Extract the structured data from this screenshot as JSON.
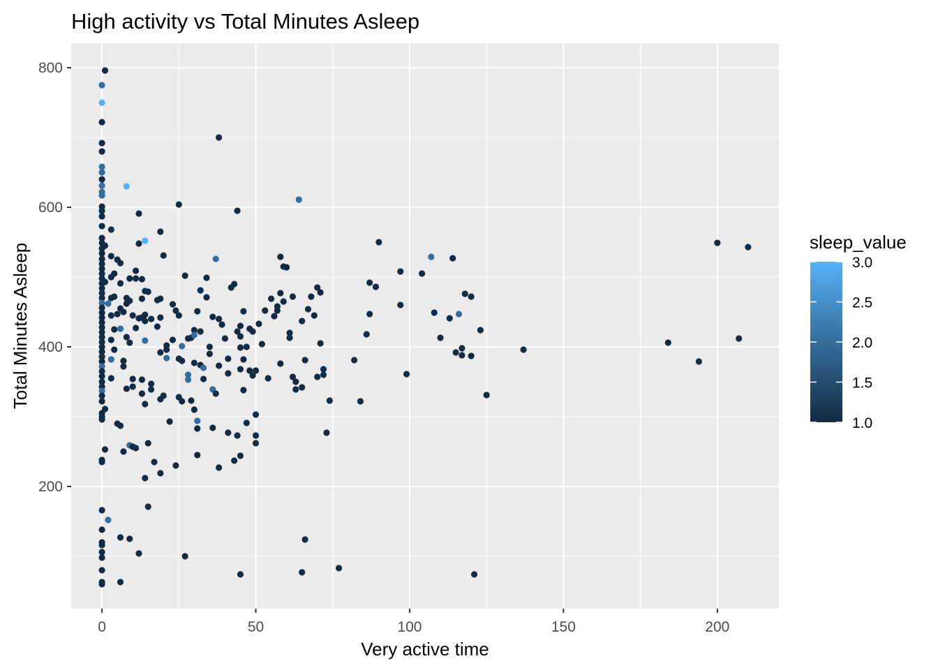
{
  "chart_data": {
    "type": "scatter",
    "title": "High activity vs Total Minutes Asleep",
    "xlabel": "Very active time",
    "ylabel": "Total Minutes Asleep",
    "xlim": [
      -10,
      220
    ],
    "ylim": [
      25,
      835
    ],
    "x_ticks": [
      0,
      50,
      100,
      150,
      200
    ],
    "y_ticks": [
      200,
      400,
      600,
      800
    ],
    "x_tick_labels": [
      "0",
      "50",
      "100",
      "150",
      "200"
    ],
    "y_tick_labels": [
      "200",
      "400",
      "600",
      "800"
    ],
    "grid": true,
    "panel_background": "#EBEBEB",
    "grid_color": "#FFFFFF",
    "color_scale": {
      "title": "sleep_value",
      "low": 1.0,
      "high": 3.0,
      "low_color": "#132B43",
      "high_color": "#56B1F7",
      "breaks": [
        1.0,
        1.5,
        2.0,
        2.5,
        3.0
      ],
      "break_labels": [
        "1.0",
        "1.5",
        "2.0",
        "2.5",
        "3.0"
      ],
      "legend_position": "right"
    },
    "points": [
      [
        0,
        775,
        2
      ],
      [
        0,
        750,
        3
      ],
      [
        0,
        722,
        1
      ],
      [
        0,
        692,
        1
      ],
      [
        0,
        680,
        1
      ],
      [
        0,
        658,
        2
      ],
      [
        0,
        650,
        2
      ],
      [
        0,
        640,
        1
      ],
      [
        0,
        631,
        2
      ],
      [
        0,
        622,
        2
      ],
      [
        0,
        617,
        2
      ],
      [
        0,
        601,
        1
      ],
      [
        0,
        595,
        1
      ],
      [
        0,
        587,
        1
      ],
      [
        0,
        573,
        1
      ],
      [
        0,
        556,
        1
      ],
      [
        0,
        549,
        1
      ],
      [
        0,
        541,
        1
      ],
      [
        0,
        534,
        1
      ],
      [
        0,
        526,
        1
      ],
      [
        0,
        519,
        1
      ],
      [
        0,
        512,
        1
      ],
      [
        0,
        505,
        1
      ],
      [
        0,
        498,
        1
      ],
      [
        0,
        491,
        1
      ],
      [
        0,
        484,
        1
      ],
      [
        0,
        477,
        1
      ],
      [
        0,
        470,
        1
      ],
      [
        0,
        463,
        2
      ],
      [
        0,
        456,
        1
      ],
      [
        0,
        449,
        1
      ],
      [
        0,
        442,
        1
      ],
      [
        0,
        435,
        1
      ],
      [
        0,
        428,
        1
      ],
      [
        0,
        421,
        1
      ],
      [
        0,
        414,
        1
      ],
      [
        0,
        407,
        1
      ],
      [
        0,
        400,
        1
      ],
      [
        0,
        393,
        1
      ],
      [
        0,
        386,
        1
      ],
      [
        0,
        379,
        1
      ],
      [
        0,
        372,
        2
      ],
      [
        0,
        365,
        1
      ],
      [
        0,
        358,
        1
      ],
      [
        0,
        350,
        1
      ],
      [
        0,
        343,
        1
      ],
      [
        0,
        337,
        2
      ],
      [
        0,
        330,
        1
      ],
      [
        0,
        322,
        1
      ],
      [
        0,
        305,
        1
      ],
      [
        0,
        300,
        1
      ],
      [
        0,
        296,
        1
      ],
      [
        0,
        238,
        1
      ],
      [
        0,
        235,
        1
      ],
      [
        0,
        166,
        1
      ],
      [
        0,
        138,
        1
      ],
      [
        0,
        120,
        1
      ],
      [
        0,
        116,
        1
      ],
      [
        0,
        106,
        1
      ],
      [
        0,
        98,
        1
      ],
      [
        0,
        80,
        1
      ],
      [
        0,
        63,
        1
      ],
      [
        0,
        60,
        1
      ],
      [
        1,
        796,
        1
      ],
      [
        1,
        311,
        1
      ],
      [
        1,
        253,
        1
      ],
      [
        1,
        545,
        1
      ],
      [
        1,
        493,
        1
      ],
      [
        2,
        152,
        2
      ],
      [
        2,
        462,
        2
      ],
      [
        3,
        568,
        1
      ],
      [
        3,
        530,
        1
      ],
      [
        3,
        500,
        1
      ],
      [
        3,
        470,
        1
      ],
      [
        3,
        445,
        1
      ],
      [
        3,
        410,
        1
      ],
      [
        3,
        382,
        2
      ],
      [
        3,
        355,
        1
      ],
      [
        4,
        505,
        1
      ],
      [
        4,
        472,
        1
      ],
      [
        4,
        425,
        1
      ],
      [
        4,
        396,
        1
      ],
      [
        5,
        525,
        1
      ],
      [
        5,
        447,
        1
      ],
      [
        5,
        290,
        1
      ],
      [
        6,
        520,
        1
      ],
      [
        6,
        491,
        1
      ],
      [
        6,
        455,
        1
      ],
      [
        6,
        426,
        2
      ],
      [
        6,
        287,
        1
      ],
      [
        6,
        127,
        1
      ],
      [
        6,
        63,
        1
      ],
      [
        7,
        450,
        1
      ],
      [
        7,
        380,
        1
      ],
      [
        7,
        372,
        1
      ],
      [
        7,
        250,
        1
      ],
      [
        8,
        630,
        3
      ],
      [
        8,
        470,
        1
      ],
      [
        8,
        462,
        1
      ],
      [
        8,
        414,
        1
      ],
      [
        8,
        340,
        1
      ],
      [
        9,
        498,
        1
      ],
      [
        9,
        466,
        1
      ],
      [
        9,
        406,
        1
      ],
      [
        9,
        259,
        2
      ],
      [
        9,
        125,
        1
      ],
      [
        10,
        445,
        1
      ],
      [
        10,
        354,
        1
      ],
      [
        10,
        343,
        1
      ],
      [
        10,
        257,
        1
      ],
      [
        11,
        509,
        1
      ],
      [
        11,
        498,
        1
      ],
      [
        11,
        427,
        1
      ],
      [
        11,
        255,
        1
      ],
      [
        12,
        591,
        1
      ],
      [
        12,
        548,
        1
      ],
      [
        12,
        441,
        1
      ],
      [
        12,
        104,
        1
      ],
      [
        13,
        497,
        1
      ],
      [
        13,
        469,
        1
      ],
      [
        13,
        442,
        1
      ],
      [
        13,
        353,
        1
      ],
      [
        13,
        333,
        1
      ],
      [
        14,
        552,
        3
      ],
      [
        14,
        480,
        1
      ],
      [
        14,
        446,
        1
      ],
      [
        14,
        437,
        1
      ],
      [
        14,
        409,
        2
      ],
      [
        14,
        318,
        1
      ],
      [
        14,
        212,
        1
      ],
      [
        15,
        479,
        1
      ],
      [
        15,
        262,
        1
      ],
      [
        15,
        171,
        1
      ],
      [
        16,
        440,
        1
      ],
      [
        16,
        347,
        1
      ],
      [
        16,
        339,
        1
      ],
      [
        17,
        235,
        1
      ],
      [
        18,
        467,
        1
      ],
      [
        18,
        429,
        1
      ],
      [
        19,
        565,
        1
      ],
      [
        19,
        469,
        1
      ],
      [
        19,
        442,
        1
      ],
      [
        19,
        392,
        1
      ],
      [
        19,
        325,
        1
      ],
      [
        19,
        219,
        1
      ],
      [
        20,
        531,
        1
      ],
      [
        20,
        330,
        1
      ],
      [
        21,
        402,
        1
      ],
      [
        21,
        396,
        1
      ],
      [
        21,
        384,
        2
      ],
      [
        22,
        293,
        1
      ],
      [
        23,
        461,
        1
      ],
      [
        23,
        410,
        1
      ],
      [
        24,
        452,
        1
      ],
      [
        24,
        230,
        1
      ],
      [
        25,
        604,
        1
      ],
      [
        25,
        445,
        1
      ],
      [
        25,
        383,
        1
      ],
      [
        25,
        328,
        1
      ],
      [
        26,
        401,
        2
      ],
      [
        26,
        380,
        1
      ],
      [
        26,
        322,
        1
      ],
      [
        27,
        502,
        1
      ],
      [
        27,
        100,
        1
      ],
      [
        28,
        412,
        1
      ],
      [
        28,
        360,
        2
      ],
      [
        28,
        353,
        2
      ],
      [
        29,
        413,
        1
      ],
      [
        29,
        323,
        1
      ],
      [
        30,
        424,
        1
      ],
      [
        30,
        417,
        2
      ],
      [
        30,
        377,
        1
      ],
      [
        30,
        310,
        1
      ],
      [
        31,
        451,
        1
      ],
      [
        31,
        294,
        2
      ],
      [
        31,
        283,
        1
      ],
      [
        31,
        245,
        1
      ],
      [
        32,
        481,
        1
      ],
      [
        32,
        422,
        1
      ],
      [
        32,
        374,
        1
      ],
      [
        33,
        370,
        2
      ],
      [
        33,
        354,
        1
      ],
      [
        34,
        499,
        1
      ],
      [
        34,
        471,
        1
      ],
      [
        35,
        400,
        1
      ],
      [
        35,
        390,
        1
      ],
      [
        36,
        443,
        1
      ],
      [
        36,
        339,
        2
      ],
      [
        36,
        284,
        1
      ],
      [
        37,
        526,
        2
      ],
      [
        37,
        333,
        1
      ],
      [
        38,
        700,
        1
      ],
      [
        38,
        440,
        1
      ],
      [
        38,
        373,
        1
      ],
      [
        38,
        227,
        1
      ],
      [
        39,
        432,
        1
      ],
      [
        40,
        412,
        1
      ],
      [
        41,
        383,
        1
      ],
      [
        41,
        362,
        1
      ],
      [
        41,
        277,
        1
      ],
      [
        42,
        485,
        1
      ],
      [
        43,
        490,
        1
      ],
      [
        43,
        237,
        1
      ],
      [
        44,
        595,
        1
      ],
      [
        44,
        422,
        1
      ],
      [
        44,
        273,
        1
      ],
      [
        45,
        430,
        1
      ],
      [
        45,
        415,
        1
      ],
      [
        45,
        399,
        1
      ],
      [
        45,
        368,
        1
      ],
      [
        45,
        244,
        1
      ],
      [
        45,
        74,
        1
      ],
      [
        46,
        451,
        1
      ],
      [
        46,
        338,
        1
      ],
      [
        46,
        382,
        1
      ],
      [
        47,
        400,
        1
      ],
      [
        47,
        291,
        1
      ],
      [
        48,
        426,
        1
      ],
      [
        48,
        366,
        1
      ],
      [
        49,
        422,
        1
      ],
      [
        49,
        359,
        1
      ],
      [
        50,
        366,
        1
      ],
      [
        50,
        303,
        1
      ],
      [
        50,
        273,
        1
      ],
      [
        50,
        262,
        1
      ],
      [
        51,
        433,
        1
      ],
      [
        52,
        404,
        1
      ],
      [
        53,
        452,
        1
      ],
      [
        54,
        355,
        1
      ],
      [
        55,
        469,
        1
      ],
      [
        56,
        444,
        1
      ],
      [
        57,
        458,
        1
      ],
      [
        57,
        452,
        1
      ],
      [
        58,
        529,
        1
      ],
      [
        58,
        477,
        1
      ],
      [
        58,
        376,
        1
      ],
      [
        59,
        515,
        1
      ],
      [
        59,
        465,
        1
      ],
      [
        60,
        514,
        1
      ],
      [
        61,
        420,
        1
      ],
      [
        61,
        413,
        1
      ],
      [
        62,
        472,
        1
      ],
      [
        62,
        357,
        1
      ],
      [
        63,
        350,
        1
      ],
      [
        63,
        339,
        1
      ],
      [
        64,
        611,
        2
      ],
      [
        65,
        437,
        1
      ],
      [
        65,
        342,
        1
      ],
      [
        65,
        77,
        1
      ],
      [
        66,
        381,
        1
      ],
      [
        66,
        124,
        1
      ],
      [
        67,
        454,
        1
      ],
      [
        68,
        472,
        1
      ],
      [
        69,
        445,
        1
      ],
      [
        70,
        485,
        1
      ],
      [
        70,
        357,
        1
      ],
      [
        71,
        478,
        1
      ],
      [
        71,
        405,
        1
      ],
      [
        72,
        368,
        1
      ],
      [
        72,
        360,
        1
      ],
      [
        73,
        277,
        1
      ],
      [
        74,
        323,
        1
      ],
      [
        77,
        83,
        1
      ],
      [
        82,
        381,
        1
      ],
      [
        84,
        322,
        1
      ],
      [
        86,
        418,
        1
      ],
      [
        87,
        492,
        1
      ],
      [
        87,
        447,
        1
      ],
      [
        89,
        486,
        1
      ],
      [
        90,
        550,
        1
      ],
      [
        97,
        508,
        1
      ],
      [
        97,
        460,
        1
      ],
      [
        99,
        361,
        1
      ],
      [
        104,
        505,
        1
      ],
      [
        107,
        529,
        2
      ],
      [
        108,
        449,
        1
      ],
      [
        110,
        413,
        1
      ],
      [
        113,
        441,
        1
      ],
      [
        114,
        527,
        1
      ],
      [
        115,
        392,
        1
      ],
      [
        116,
        447,
        2
      ],
      [
        117,
        398,
        1
      ],
      [
        117,
        388,
        1
      ],
      [
        118,
        476,
        1
      ],
      [
        120,
        387,
        1
      ],
      [
        120,
        472,
        1
      ],
      [
        121,
        74,
        1
      ],
      [
        123,
        424,
        1
      ],
      [
        125,
        331,
        1
      ],
      [
        137,
        396,
        1
      ],
      [
        184,
        406,
        1
      ],
      [
        194,
        379,
        1
      ],
      [
        200,
        549,
        1
      ],
      [
        207,
        412,
        1
      ],
      [
        210,
        543,
        1
      ]
    ]
  }
}
